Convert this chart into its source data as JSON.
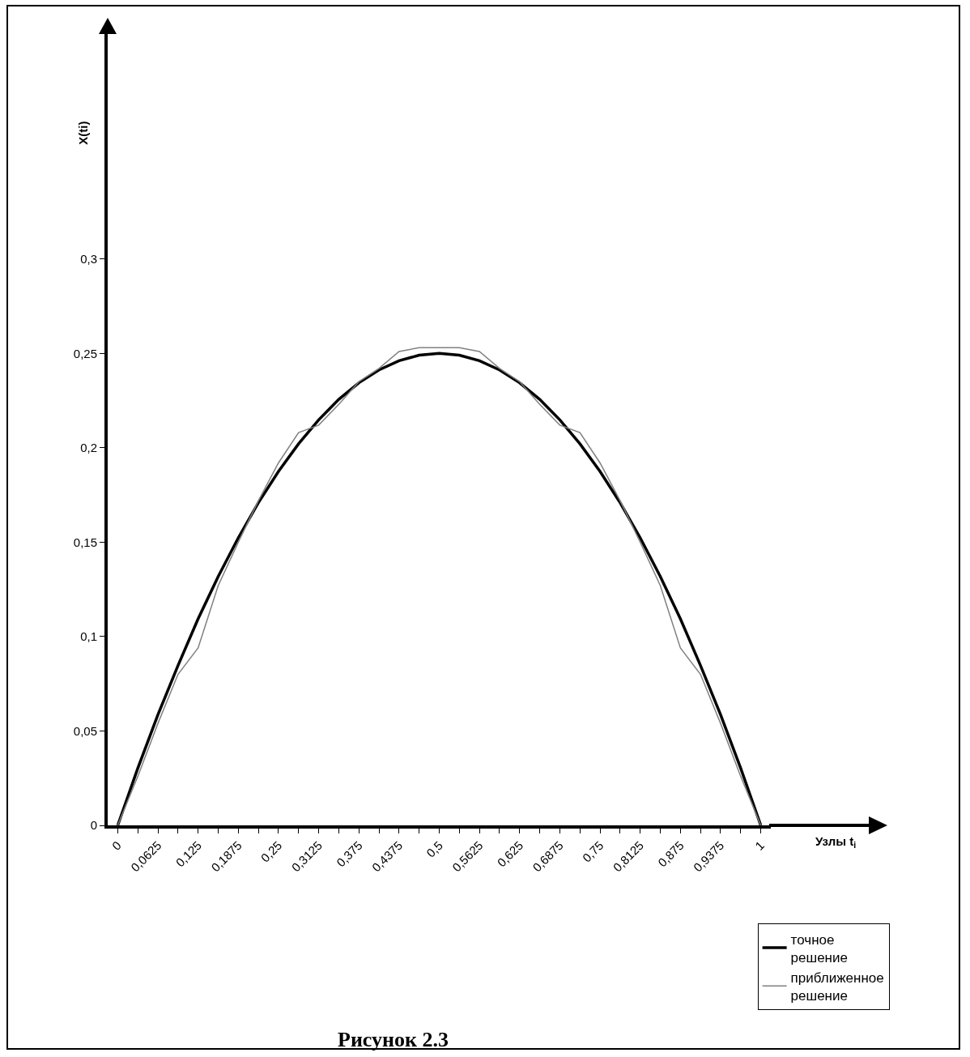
{
  "chart_data": {
    "type": "line",
    "title": "Рисунок 2.3",
    "xlabel": "Узлы t$_{i}$",
    "ylabel": "X(ti)",
    "x": [
      0,
      0.03125,
      0.0625,
      0.09375,
      0.125,
      0.15625,
      0.1875,
      0.21875,
      0.25,
      0.28125,
      0.3125,
      0.34375,
      0.375,
      0.40625,
      0.4375,
      0.46875,
      0.5,
      0.53125,
      0.5625,
      0.59375,
      0.625,
      0.65625,
      0.6875,
      0.71875,
      0.75,
      0.78125,
      0.8125,
      0.84375,
      0.875,
      0.90625,
      0.9375,
      0.96875,
      1
    ],
    "series": [
      {
        "name": "точное решение",
        "color": "#000000",
        "values": [
          0,
          0.0303,
          0.0586,
          0.0847,
          0.1094,
          0.1318,
          0.1523,
          0.1709,
          0.1875,
          0.2021,
          0.2148,
          0.2256,
          0.2344,
          0.2412,
          0.2461,
          0.249,
          0.25,
          0.249,
          0.2461,
          0.2412,
          0.2344,
          0.2256,
          0.2148,
          0.2021,
          0.1875,
          0.1709,
          0.1523,
          0.1318,
          0.1094,
          0.0847,
          0.0586,
          0.0303,
          0
        ]
      },
      {
        "name": "приближенное решение",
        "color": "#808080",
        "values": [
          0,
          0.026,
          0.054,
          0.08,
          0.094,
          0.127,
          0.15,
          0.172,
          0.192,
          0.208,
          0.212,
          0.223,
          0.235,
          0.242,
          0.251,
          0.253,
          0.253,
          0.253,
          0.251,
          0.242,
          0.235,
          0.223,
          0.212,
          0.208,
          0.192,
          0.172,
          0.15,
          0.127,
          0.094,
          0.08,
          0.054,
          0.026,
          0
        ]
      }
    ],
    "xlim": [
      -0.015625,
      1.015625
    ],
    "xticks": [
      0,
      {
        "value": 0.03125,
        "label": null
      },
      {
        "value": 0.0625,
        "label": "0,0625"
      },
      {
        "value": 0.09375,
        "label": null
      },
      {
        "value": 0.125,
        "label": "0,125"
      },
      {
        "value": 0.15625,
        "label": null
      },
      {
        "value": 0.1875,
        "label": "0,1875"
      },
      {
        "value": 0.21875,
        "label": null
      },
      {
        "value": 0.25,
        "label": "0,25"
      },
      {
        "value": 0.28125,
        "label": null
      },
      {
        "value": 0.3125,
        "label": "0,3125"
      },
      {
        "value": 0.34375,
        "label": null
      },
      {
        "value": 0.375,
        "label": "0,375"
      },
      {
        "value": 0.40625,
        "label": null
      },
      {
        "value": 0.4375,
        "label": "0,4375"
      },
      {
        "value": 0.46875,
        "label": null
      },
      {
        "value": 0.5,
        "label": "0,5"
      },
      {
        "value": 0.53125,
        "label": null
      },
      {
        "value": 0.5625,
        "label": "0,5625"
      },
      {
        "value": 0.59375,
        "label": null
      },
      {
        "value": 0.625,
        "label": "0,625"
      },
      {
        "value": 0.65625,
        "label": null
      },
      {
        "value": 0.6875,
        "label": "0,6875"
      },
      {
        "value": 0.71875,
        "label": null
      },
      {
        "value": 0.75,
        "label": "0,75"
      },
      {
        "value": 0.78125,
        "label": null
      },
      {
        "value": 0.8125,
        "label": "0,8125"
      },
      {
        "value": 0.84375,
        "label": null
      },
      {
        "value": 0.875,
        "label": "0,875"
      },
      {
        "value": 0.90625,
        "label": null
      },
      {
        "value": 0.9375,
        "label": "0,9375"
      },
      {
        "value": 0.96875,
        "label": null
      },
      1
    ],
    "ylim": [
      0,
      0.42
    ],
    "yticks": [
      0,
      {
        "value": 0.05,
        "label": "0,05"
      },
      {
        "value": 0.1,
        "label": "0,1"
      },
      {
        "value": 0.15,
        "label": "0,15"
      },
      {
        "value": 0.2,
        "label": "0,2"
      },
      {
        "value": 0.25,
        "label": "0,25"
      },
      {
        "value": 0.3,
        "label": "0,3"
      }
    ],
    "grid": false,
    "legend": "bottom right",
    "marker": "none",
    "line_style": "solid"
  }
}
